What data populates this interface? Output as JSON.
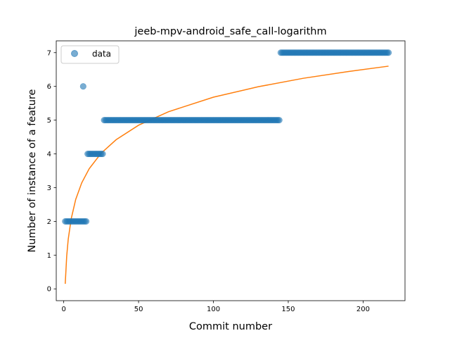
{
  "chart_data": {
    "type": "scatter",
    "title": "jeeb-mpv-android_safe_call-logarithm",
    "xlabel": "Commit number",
    "ylabel": "Number of instance of a feature",
    "xlim": [
      -5,
      228
    ],
    "ylim": [
      -0.35,
      7.35
    ],
    "xticks": [
      0,
      50,
      100,
      150,
      200
    ],
    "yticks": [
      0,
      1,
      2,
      3,
      4,
      5,
      6,
      7
    ],
    "grid": false,
    "legend": {
      "placement": "top-left",
      "entries": [
        "data"
      ]
    },
    "colors": {
      "data": "#1f77b4",
      "fit": "#ff7f0e"
    },
    "series": [
      {
        "name": "data",
        "kind": "scatter",
        "segments": [
          {
            "x_start": 1,
            "x_end": 15,
            "y": 2
          },
          {
            "x_start": 13,
            "x_end": 13,
            "y": 6
          },
          {
            "x_start": 16,
            "x_end": 26,
            "y": 4
          },
          {
            "x_start": 27,
            "x_end": 144,
            "y": 5
          },
          {
            "x_start": 145,
            "x_end": 217,
            "y": 7
          }
        ]
      },
      {
        "kind": "line",
        "x": [
          1,
          2,
          3,
          5,
          8,
          12,
          17,
          25,
          35,
          50,
          70,
          100,
          130,
          160,
          190,
          217
        ],
        "y": [
          0.15,
          0.98,
          1.47,
          2.08,
          2.65,
          3.14,
          3.56,
          4.02,
          4.42,
          4.85,
          5.25,
          5.68,
          5.99,
          6.24,
          6.44,
          6.6
        ]
      }
    ]
  }
}
